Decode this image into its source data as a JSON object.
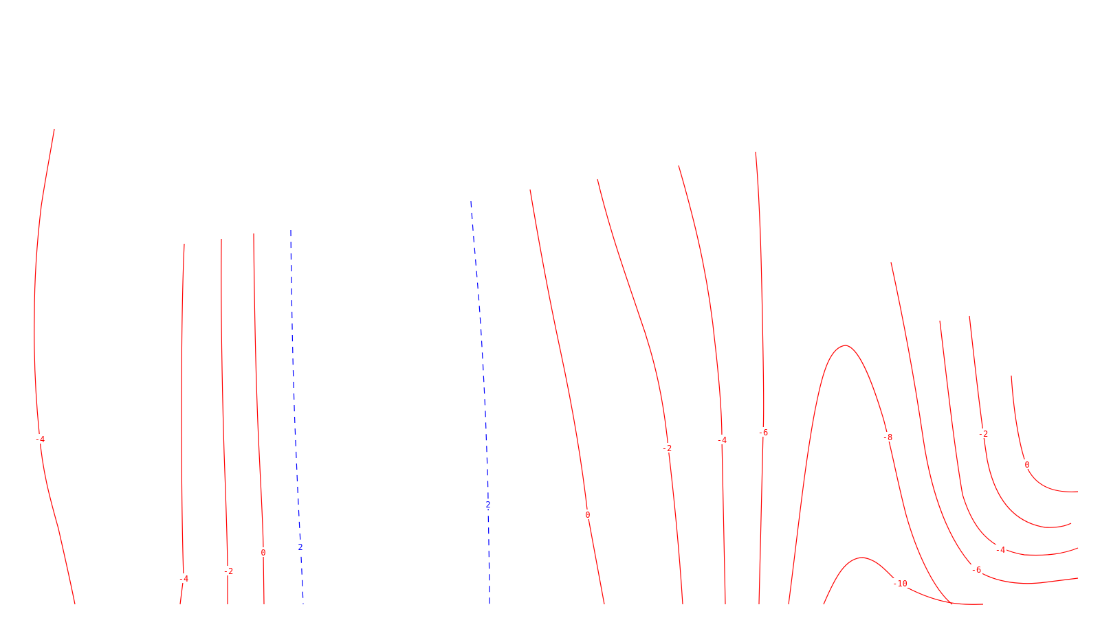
{
  "chart_data": {
    "type": "contour",
    "title": "",
    "xlabel": "",
    "ylabel": "",
    "grid": false,
    "legend": "none",
    "colors": {
      "negative_or_zero": "#ff0000",
      "positive": "#0000ff",
      "background": "#ffffff"
    },
    "line_styles": {
      "negative_or_zero": "solid",
      "positive": "dashed"
    },
    "contour_levels_shown": [
      "-10",
      "-8",
      "-6",
      "-4",
      "-2",
      "0",
      "2"
    ],
    "contour_labels": [
      {
        "text": "-4",
        "level": -4,
        "sign": "neg"
      },
      {
        "text": "-4",
        "level": -4,
        "sign": "neg"
      },
      {
        "text": "-2",
        "level": -2,
        "sign": "neg"
      },
      {
        "text": "0",
        "level": 0,
        "sign": "neg"
      },
      {
        "text": "2",
        "level": 2,
        "sign": "pos"
      },
      {
        "text": "2",
        "level": 2,
        "sign": "pos"
      },
      {
        "text": "0",
        "level": 0,
        "sign": "neg"
      },
      {
        "text": "-2",
        "level": -2,
        "sign": "neg"
      },
      {
        "text": "-4",
        "level": -4,
        "sign": "neg"
      },
      {
        "text": "-6",
        "level": -6,
        "sign": "neg"
      },
      {
        "text": "-8",
        "level": -8,
        "sign": "neg"
      },
      {
        "text": "-10",
        "level": -10,
        "sign": "neg"
      },
      {
        "text": "-2",
        "level": -2,
        "sign": "neg"
      },
      {
        "text": "0",
        "level": 0,
        "sign": "neg"
      },
      {
        "text": "-4",
        "level": -4,
        "sign": "neg"
      },
      {
        "text": "-6",
        "level": -6,
        "sign": "neg"
      }
    ]
  }
}
